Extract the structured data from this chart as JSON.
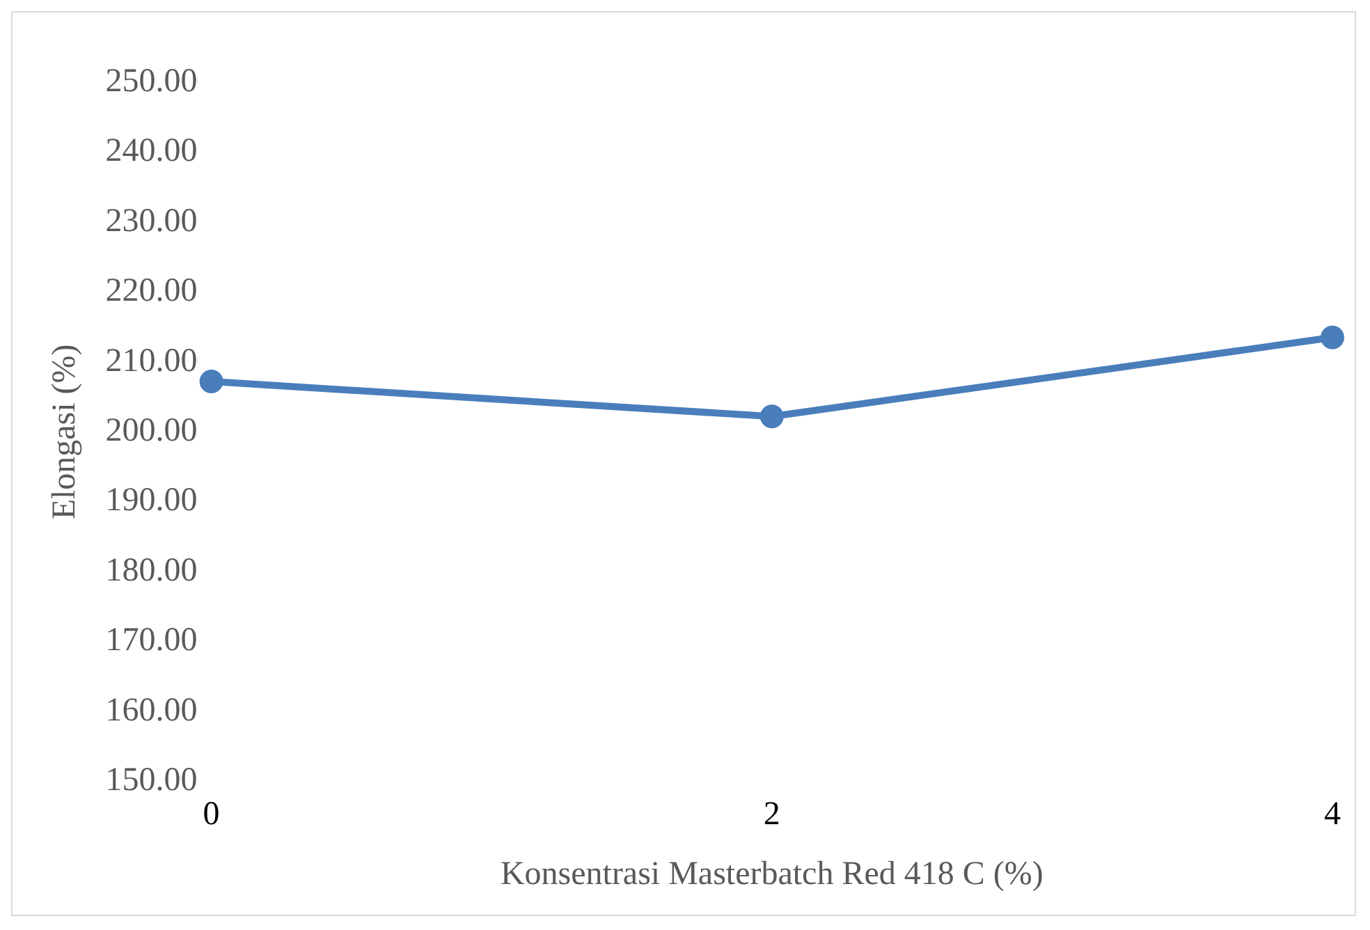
{
  "chart_data": {
    "type": "line",
    "xlabel": "Konsentrasi Masterbatch Red 418 C (%)",
    "ylabel": "Elongasi (%)",
    "categories": [
      "0",
      "2",
      "4"
    ],
    "series": [
      {
        "color": "#4a7ebb",
        "values": [
          207.2,
          202.2,
          213.5
        ]
      }
    ],
    "ylim": [
      150,
      250
    ],
    "yticks": [
      {
        "value": 150,
        "label": "150.00"
      },
      {
        "value": 160,
        "label": "160.00"
      },
      {
        "value": 170,
        "label": "170.00"
      },
      {
        "value": 180,
        "label": "180.00"
      },
      {
        "value": 190,
        "label": "190.00"
      },
      {
        "value": 200,
        "label": "200.00"
      },
      {
        "value": 210,
        "label": "210.00"
      },
      {
        "value": 220,
        "label": "220.00"
      },
      {
        "value": 230,
        "label": "230.00"
      },
      {
        "value": 240,
        "label": "240.00"
      },
      {
        "value": 250,
        "label": "250.00"
      }
    ],
    "grid": false,
    "legend": false,
    "marker": "circle",
    "line_style": "solid"
  }
}
